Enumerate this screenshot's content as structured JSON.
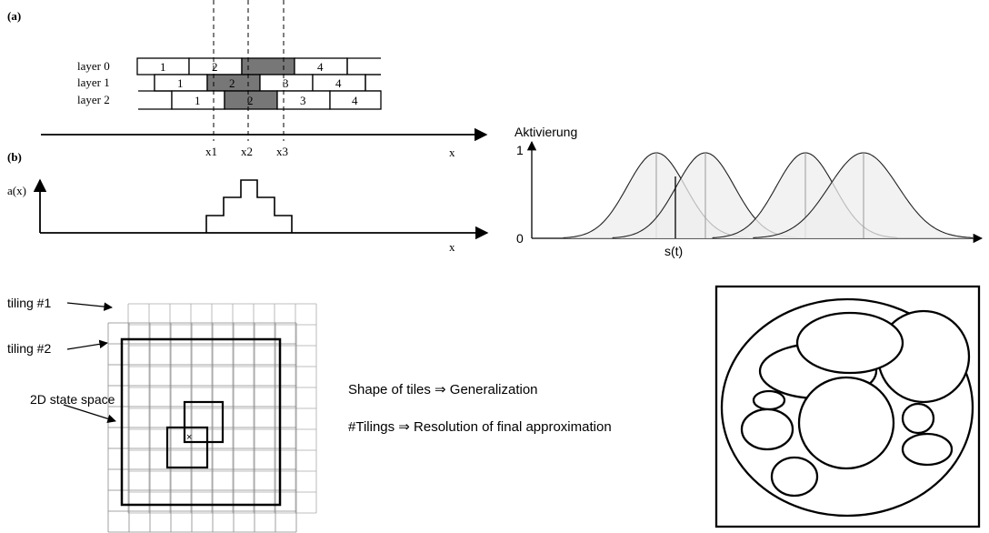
{
  "panel_a": {
    "label": "(a)",
    "layers": [
      {
        "name": "layer 0",
        "tiles": [
          "1",
          "2",
          "",
          "4",
          ""
        ]
      },
      {
        "name": "layer 1",
        "tiles": [
          "",
          "1",
          "2",
          "3",
          "4",
          ""
        ]
      },
      {
        "name": "layer 2",
        "tiles": [
          "",
          "1",
          "2",
          "3",
          "4"
        ]
      }
    ],
    "ticks": [
      "x1",
      "x2",
      "x3"
    ],
    "axis_label": "x"
  },
  "panel_b": {
    "label": "(b)",
    "y_label": "a(x)",
    "axis_label": "x"
  },
  "rbf": {
    "y_label": "Aktivierung",
    "y_top": "1",
    "y_bottom": "0",
    "x_label": "s(t)"
  },
  "tiling": {
    "labels": [
      "tiling #1",
      "tiling #2",
      "2D state space"
    ],
    "marker": "×"
  },
  "notes": {
    "line1": "Shape of tiles ⇒ Generalization",
    "line2": "#Tilings ⇒ Resolution of final approximation"
  },
  "colors": {
    "shaded_tile": "#777777",
    "gaussian_fill": "#eeeeee"
  }
}
